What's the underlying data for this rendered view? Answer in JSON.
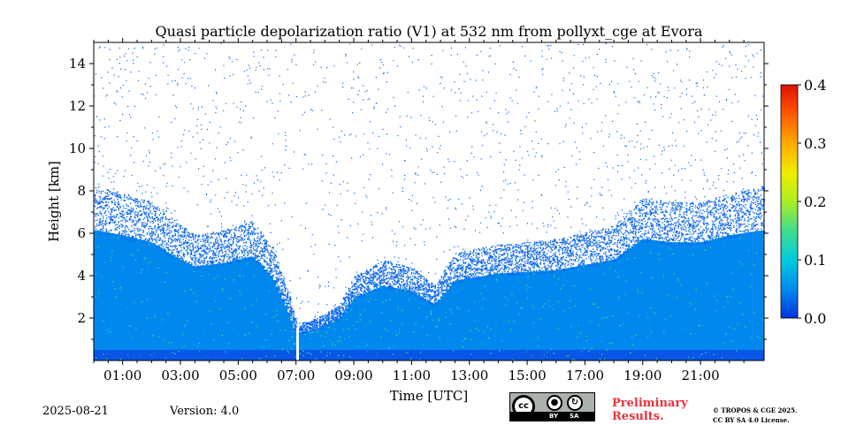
{
  "chart_data": {
    "type": "heatmap",
    "title": "Quasi particle depolarization ratio (V1) at 532 nm from pollyxt_cge at Evora",
    "xlabel": "Time [UTC]",
    "ylabel": "Height [km]",
    "x_unit": "hours UTC",
    "xlim": [
      0.0,
      23.2
    ],
    "ylim": [
      0,
      15
    ],
    "x_ticks": [
      1,
      3,
      5,
      7,
      9,
      11,
      13,
      15,
      17,
      19,
      21
    ],
    "x_tick_labels": [
      "01:00",
      "03:00",
      "05:00",
      "07:00",
      "09:00",
      "11:00",
      "13:00",
      "15:00",
      "17:00",
      "19:00",
      "21:00"
    ],
    "y_ticks": [
      2,
      4,
      6,
      8,
      10,
      12,
      14
    ],
    "y_tick_labels": [
      "2",
      "4",
      "6",
      "8",
      "10",
      "12",
      "14"
    ],
    "colorbar": {
      "range": [
        0.0,
        0.4
      ],
      "ticks": [
        0.0,
        0.1,
        0.2,
        0.3,
        0.4
      ],
      "tick_labels": [
        "0.0",
        "0.1",
        "0.2",
        "0.3",
        "0.4"
      ],
      "colors": [
        "#0033dd",
        "#0088ee",
        "#00ccdd",
        "#44dd88",
        "#aaee22",
        "#eeee00",
        "#ffaa00",
        "#ff5500",
        "#dd1100"
      ]
    },
    "signal_top_km": {
      "time": [
        0.0,
        1.0,
        2.0,
        2.8,
        3.5,
        4.5,
        5.5,
        6.2,
        6.7,
        7.0,
        7.5,
        8.0,
        8.5,
        9.0,
        10.0,
        11.0,
        11.8,
        12.5,
        14.0,
        16.0,
        18.0,
        19.0,
        20.0,
        21.0,
        22.0,
        23.2
      ],
      "height": [
        7.5,
        7.2,
        6.8,
        6.0,
        5.4,
        5.6,
        6.0,
        4.8,
        3.0,
        1.6,
        1.7,
        2.0,
        2.4,
        3.6,
        4.3,
        4.0,
        3.2,
        4.6,
        5.0,
        5.2,
        5.8,
        7.0,
        6.8,
        6.8,
        7.2,
        7.5
      ]
    },
    "gaps_hours": [
      6.95,
      7.05
    ],
    "background_value": 0.02,
    "noise_value_range": [
      0.0,
      0.08
    ]
  },
  "footer": {
    "date": "2025-08-21",
    "version": "Version: 4.0",
    "preliminary_line1": "Preliminary",
    "preliminary_line2": "Results.",
    "copyright_line1": "© TROPOS & CGE 2025.",
    "copyright_line2": "CC BY SA 4.0 License.",
    "cc_logo": "cc",
    "cc_by": "BY",
    "cc_sa": "SA",
    "by_icon": "person-icon",
    "sa_icon": "share-alike-icon"
  }
}
